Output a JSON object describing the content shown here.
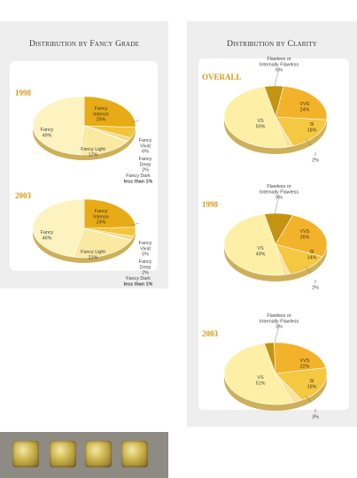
{
  "left_title": "Distribution by Fancy Grade",
  "right_title": "Distribution by Clarity",
  "chart_data": [
    {
      "type": "pie",
      "title": "Distribution by Fancy Grade",
      "panel_label": "1998",
      "slices": [
        {
          "label": "Fancy Intense",
          "pct_text": "26%",
          "value": 26,
          "color": "#e6ab16"
        },
        {
          "label": "Fancy Vivid",
          "pct_text": "6%",
          "value": 6,
          "color": "#f2c43a"
        },
        {
          "label": "Fancy Deep",
          "pct_text": "2%",
          "value": 2,
          "color": "#f5d97e"
        },
        {
          "label": "Fancy Dark",
          "pct_text": "less than 1%",
          "value": 0.5,
          "color": "#f7e19a"
        },
        {
          "label": "Fancy Light",
          "pct_text": "17%",
          "value": 17,
          "color": "#fae9a1"
        },
        {
          "label": "Fancy",
          "pct_text": "49%",
          "value": 49,
          "color": "#fdf3c0"
        }
      ]
    },
    {
      "type": "pie",
      "title": "Distribution by Fancy Grade",
      "panel_label": "2003",
      "slices": [
        {
          "label": "Fancy Intense",
          "pct_text": "24%",
          "value": 24,
          "color": "#e6ab16"
        },
        {
          "label": "Fancy Vivid",
          "pct_text": "5%",
          "value": 5,
          "color": "#f2c43a"
        },
        {
          "label": "Fancy Deep",
          "pct_text": "2%",
          "value": 2,
          "color": "#f5d97e"
        },
        {
          "label": "Fancy Dark",
          "pct_text": "less than 1%",
          "value": 0.5,
          "color": "#f7e19a"
        },
        {
          "label": "Fancy Light",
          "pct_text": "21%",
          "value": 21,
          "color": "#fae9a1"
        },
        {
          "label": "Fancy",
          "pct_text": "46%",
          "value": 46,
          "color": "#fdf3c0"
        }
      ]
    },
    {
      "type": "pie",
      "title": "Distribution by Clarity",
      "panel_label": "Overall",
      "slices": [
        {
          "label": "Flawless or Internally Flawless",
          "pct_text": "6%",
          "value": 6,
          "color": "#c49312"
        },
        {
          "label": "VVS",
          "pct_text": "24%",
          "value": 24,
          "color": "#f2b22a"
        },
        {
          "label": "SI",
          "pct_text": "18%",
          "value": 18,
          "color": "#f5c842"
        },
        {
          "label": "I",
          "pct_text": "2%",
          "value": 2,
          "color": "#fbe39a"
        },
        {
          "label": "VS",
          "pct_text": "50%",
          "value": 50,
          "color": "#fdf0a6"
        }
      ]
    },
    {
      "type": "pie",
      "title": "Distribution by Clarity",
      "panel_label": "1998",
      "slices": [
        {
          "label": "Flawless or Internally Flawless",
          "pct_text": "9%",
          "value": 9,
          "color": "#c49312"
        },
        {
          "label": "VVS",
          "pct_text": "26%",
          "value": 26,
          "color": "#f2b22a"
        },
        {
          "label": "SI",
          "pct_text": "14%",
          "value": 14,
          "color": "#f5c842"
        },
        {
          "label": "I",
          "pct_text": "2%",
          "value": 2,
          "color": "#fbe39a"
        },
        {
          "label": "VS",
          "pct_text": "49%",
          "value": 49,
          "color": "#fdf0a6"
        }
      ]
    },
    {
      "type": "pie",
      "title": "Distribution by Clarity",
      "panel_label": "2003",
      "slices": [
        {
          "label": "Flawless or Internally Flawless",
          "pct_text": "3%",
          "value": 3,
          "color": "#c49312"
        },
        {
          "label": "VVS",
          "pct_text": "22%",
          "value": 22,
          "color": "#f2b22a"
        },
        {
          "label": "SI",
          "pct_text": "19%",
          "value": 19,
          "color": "#f5c842"
        },
        {
          "label": "I",
          "pct_text": "3%",
          "value": 3,
          "color": "#fbe39a"
        },
        {
          "label": "VS",
          "pct_text": "51%",
          "value": 51,
          "color": "#fdf0a6"
        }
      ]
    }
  ]
}
